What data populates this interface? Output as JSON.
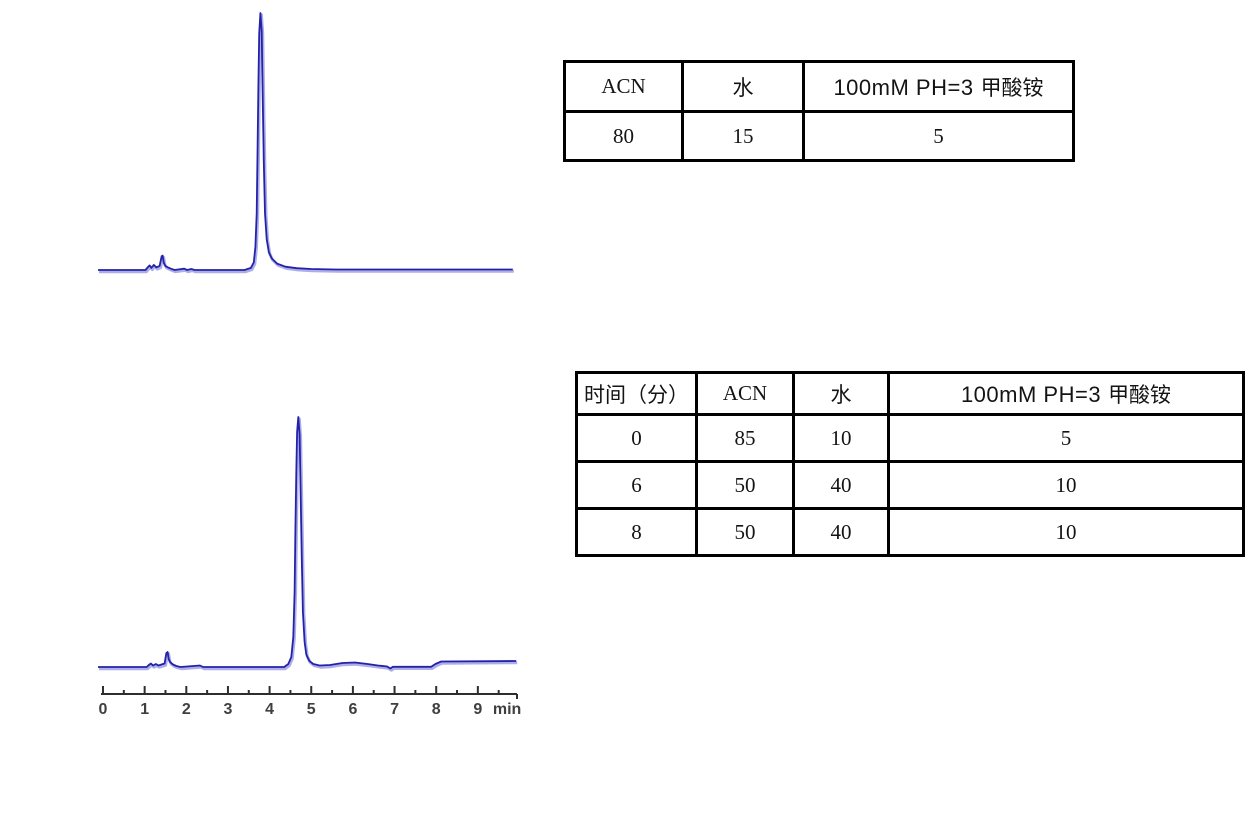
{
  "colors": {
    "trace_main": "#2323a8",
    "trace_fringe": "#8a8ae0",
    "axis": "#2e2e2e",
    "axis_label": "#3f3f3f",
    "table_border": "#000000"
  },
  "table1": {
    "headers": [
      {
        "label": "ACN"
      },
      {
        "label": "水"
      },
      {
        "en": "100mM PH=3",
        "cn": "甲酸铵"
      }
    ],
    "rows": [
      [
        "80",
        "15",
        "5"
      ]
    ]
  },
  "table2": {
    "headers": [
      {
        "label": "时间（分）"
      },
      {
        "label": "ACN"
      },
      {
        "label": "水"
      },
      {
        "en": "100mM PH=3",
        "cn": "甲酸铵"
      }
    ],
    "rows": [
      [
        "0",
        "85",
        "10",
        "5"
      ],
      [
        "6",
        "50",
        "40",
        "10"
      ],
      [
        "8",
        "50",
        "40",
        "10"
      ]
    ]
  },
  "chart_data": [
    {
      "type": "line",
      "name": "chromatogram-isocratic",
      "x_unit": "min",
      "x_range": [
        -0.12,
        9.85
      ],
      "y_range_rel": [
        0,
        1
      ],
      "axis_visible": false,
      "peaks": [
        {
          "rt": 1.43,
          "rel_height": 0.056,
          "note": "minor solvent-front peaks"
        },
        {
          "rt": 3.78,
          "rel_height": 1.0,
          "note": "main peak"
        }
      ],
      "trace": [
        [
          -0.12,
          0
        ],
        [
          1.02,
          0
        ],
        [
          1.07,
          0.01
        ],
        [
          1.12,
          0.018
        ],
        [
          1.16,
          0.008
        ],
        [
          1.22,
          0.02
        ],
        [
          1.28,
          0.01
        ],
        [
          1.36,
          0.016
        ],
        [
          1.41,
          0.054
        ],
        [
          1.43,
          0.056
        ],
        [
          1.46,
          0.028
        ],
        [
          1.5,
          0.015
        ],
        [
          1.56,
          0.01
        ],
        [
          1.63,
          0.005
        ],
        [
          1.72,
          0
        ],
        [
          1.95,
          0.005
        ],
        [
          2.02,
          0
        ],
        [
          2.12,
          0.004
        ],
        [
          2.2,
          0
        ],
        [
          3.4,
          0
        ],
        [
          3.55,
          0.008
        ],
        [
          3.62,
          0.03
        ],
        [
          3.66,
          0.09
        ],
        [
          3.69,
          0.22
        ],
        [
          3.71,
          0.45
        ],
        [
          3.73,
          0.72
        ],
        [
          3.75,
          0.92
        ],
        [
          3.78,
          1.0
        ],
        [
          3.81,
          0.93
        ],
        [
          3.83,
          0.72
        ],
        [
          3.86,
          0.42
        ],
        [
          3.89,
          0.22
        ],
        [
          3.93,
          0.12
        ],
        [
          3.98,
          0.07
        ],
        [
          4.05,
          0.045
        ],
        [
          4.18,
          0.025
        ],
        [
          4.38,
          0.013
        ],
        [
          4.65,
          0.007
        ],
        [
          5.0,
          0.004
        ],
        [
          5.6,
          0.002
        ],
        [
          9.84,
          0.002
        ]
      ]
    },
    {
      "type": "line",
      "name": "chromatogram-gradient",
      "x_unit": "min",
      "x_range": [
        -0.12,
        9.95
      ],
      "y_range_rel": [
        0,
        1
      ],
      "axis_visible": true,
      "axis": {
        "tick_labels": [
          "0",
          "1",
          "2",
          "3",
          "4",
          "5",
          "6",
          "7",
          "8",
          "9"
        ],
        "unit_label": "min",
        "minor_tick_step": 0.5
      },
      "peaks": [
        {
          "rt": 1.55,
          "rel_height": 0.06,
          "note": "minor solvent-front peaks"
        },
        {
          "rt": 4.69,
          "rel_height": 1.0,
          "note": "main peak"
        }
      ],
      "trace": [
        [
          -0.12,
          0
        ],
        [
          1.05,
          0
        ],
        [
          1.1,
          0.008
        ],
        [
          1.15,
          0.014
        ],
        [
          1.2,
          0.006
        ],
        [
          1.27,
          0.012
        ],
        [
          1.33,
          0.006
        ],
        [
          1.48,
          0.014
        ],
        [
          1.52,
          0.055
        ],
        [
          1.55,
          0.06
        ],
        [
          1.58,
          0.03
        ],
        [
          1.62,
          0.018
        ],
        [
          1.68,
          0.01
        ],
        [
          1.76,
          0.004
        ],
        [
          1.86,
          0
        ],
        [
          2.33,
          0.006
        ],
        [
          2.4,
          0
        ],
        [
          4.35,
          0
        ],
        [
          4.45,
          0.012
        ],
        [
          4.52,
          0.04
        ],
        [
          4.57,
          0.12
        ],
        [
          4.6,
          0.3
        ],
        [
          4.62,
          0.55
        ],
        [
          4.64,
          0.78
        ],
        [
          4.66,
          0.94
        ],
        [
          4.69,
          1.0
        ],
        [
          4.72,
          0.93
        ],
        [
          4.74,
          0.75
        ],
        [
          4.77,
          0.45
        ],
        [
          4.8,
          0.22
        ],
        [
          4.84,
          0.1
        ],
        [
          4.88,
          0.05
        ],
        [
          4.95,
          0.025
        ],
        [
          5.05,
          0.012
        ],
        [
          5.2,
          0.006
        ],
        [
          5.45,
          0.008
        ],
        [
          5.75,
          0.016
        ],
        [
          6.05,
          0.018
        ],
        [
          6.35,
          0.012
        ],
        [
          6.6,
          0.006
        ],
        [
          6.82,
          0.002
        ],
        [
          6.9,
          -0.006
        ],
        [
          6.96,
          0.001
        ],
        [
          7.88,
          0.001
        ],
        [
          7.98,
          0.012
        ],
        [
          8.12,
          0.022
        ],
        [
          9.92,
          0.024
        ]
      ]
    }
  ]
}
